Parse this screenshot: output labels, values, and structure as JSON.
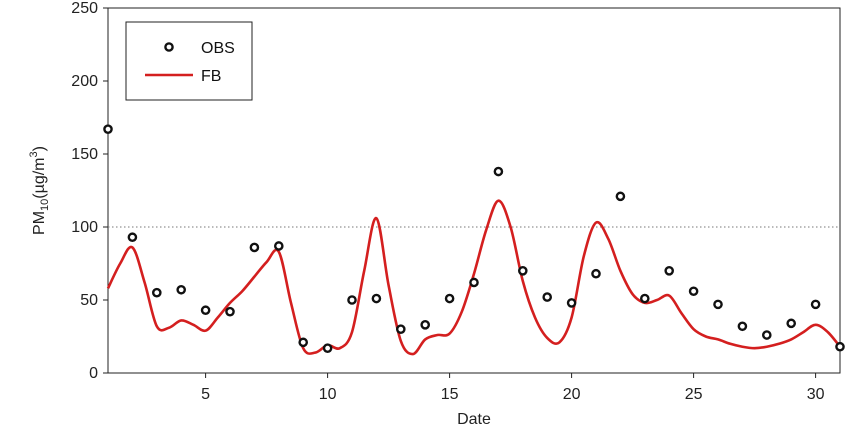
{
  "chart_data": {
    "type": "line",
    "title": "",
    "xlabel": "Date",
    "ylabel": {
      "main": "PM",
      "sub": "10",
      "unit_open": "(µg/m",
      "unit_sup": "3",
      "unit_close": ")"
    },
    "xlim": [
      1,
      31
    ],
    "ylim": [
      0,
      250
    ],
    "xticks": [
      5,
      10,
      15,
      20,
      25,
      30
    ],
    "yticks": [
      0,
      50,
      100,
      150,
      200,
      250
    ],
    "reference_line": {
      "y": 100,
      "style": "dotted"
    },
    "legend": {
      "position": "top-left",
      "entries": [
        {
          "label": "OBS",
          "marker": "open-circle",
          "color": "#111111"
        },
        {
          "label": "FB",
          "marker": "line",
          "color": "#d41f1f"
        }
      ]
    },
    "series": [
      {
        "name": "OBS",
        "kind": "scatter",
        "color": "#111111",
        "x": [
          1,
          2,
          3,
          4,
          5,
          6,
          7,
          8,
          9,
          10,
          11,
          12,
          13,
          14,
          15,
          16,
          17,
          18,
          19,
          20,
          21,
          22,
          23,
          24,
          25,
          26,
          27,
          28,
          29,
          30,
          31
        ],
        "y": [
          167,
          93,
          55,
          57,
          43,
          42,
          86,
          87,
          21,
          17,
          50,
          51,
          30,
          33,
          51,
          62,
          138,
          70,
          52,
          48,
          68,
          121,
          51,
          70,
          56,
          47,
          32,
          26,
          34,
          47,
          18
        ]
      },
      {
        "name": "FB",
        "kind": "line",
        "color": "#d41f1f",
        "x": [
          1,
          1.5,
          2,
          2.5,
          3,
          3.5,
          4,
          4.5,
          5,
          5.5,
          6,
          6.5,
          7,
          7.5,
          8,
          8.5,
          9,
          9.5,
          10,
          10.5,
          11,
          11.5,
          12,
          12.5,
          13,
          13.5,
          14,
          14.5,
          15,
          15.5,
          16,
          16.5,
          17,
          17.5,
          18,
          18.5,
          19,
          19.5,
          20,
          20.5,
          21,
          21.5,
          22,
          22.5,
          23,
          23.5,
          24,
          24.5,
          25,
          25.5,
          26,
          26.5,
          27,
          27.5,
          28,
          28.5,
          29,
          29.5,
          30,
          30.5,
          31
        ],
        "y": [
          58,
          75,
          86,
          62,
          32,
          31,
          36,
          33,
          29,
          38,
          48,
          56,
          66,
          76,
          83,
          48,
          17,
          14,
          19,
          17,
          28,
          70,
          106,
          60,
          22,
          13,
          23,
          26,
          27,
          42,
          68,
          98,
          118,
          100,
          63,
          38,
          24,
          21,
          38,
          80,
          103,
          92,
          70,
          54,
          48,
          50,
          53,
          41,
          30,
          25,
          23,
          20,
          18,
          17,
          18,
          20,
          23,
          28,
          33,
          28,
          18
        ]
      }
    ]
  }
}
